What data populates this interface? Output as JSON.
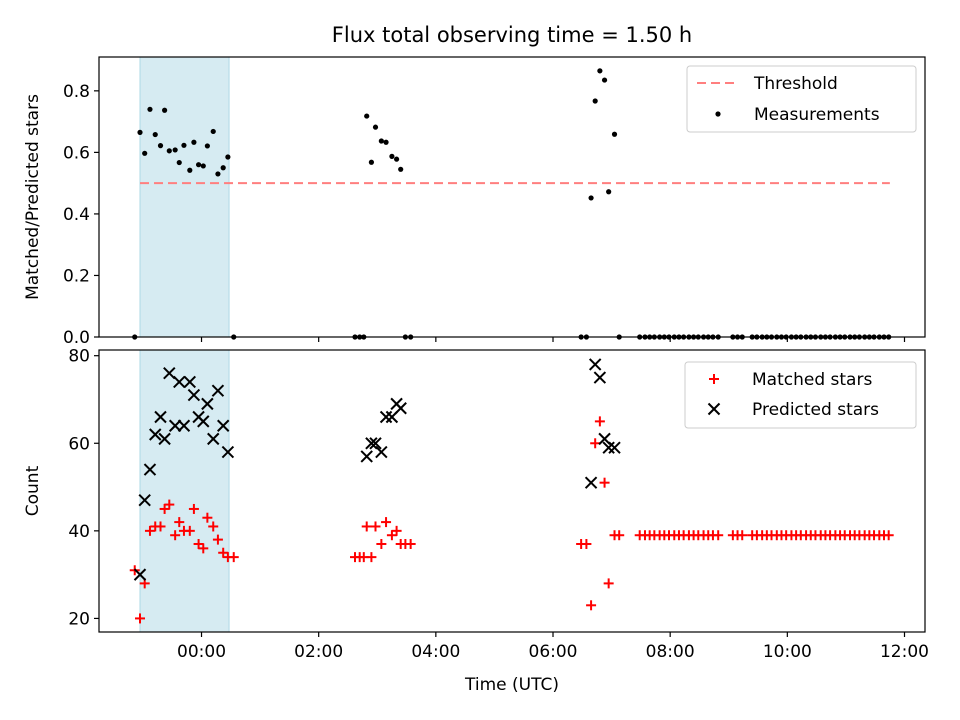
{
  "chart_data": [
    {
      "type": "scatter",
      "title": "Flux total observing time = 1.50 h",
      "xlabel": "",
      "ylabel": "Matched/Predicted stars",
      "x_unit": "hours (UTC), axis labelled HH:MM",
      "xlim": [
        -1.75,
        12.35
      ],
      "ylim": [
        0.0,
        0.91
      ],
      "yticks": [
        "0.0",
        "0.2",
        "0.4",
        "0.6",
        "0.8"
      ],
      "shaded_span": [
        -1.05,
        0.47
      ],
      "shaded_color": "#add8e6",
      "legend_position": "top-right",
      "threshold": {
        "name": "Threshold",
        "y": 0.5,
        "x_range": [
          -1.05,
          11.75
        ],
        "color": "#ff7f7f"
      },
      "series": [
        {
          "name": "Measurements",
          "color": "#000000",
          "points": [
            [
              -1.14,
              0.0
            ],
            [
              -1.05,
              0.665
            ],
            [
              -0.97,
              0.597
            ],
            [
              -0.88,
              0.74
            ],
            [
              -0.79,
              0.658
            ],
            [
              -0.7,
              0.622
            ],
            [
              -0.63,
              0.737
            ],
            [
              -0.55,
              0.605
            ],
            [
              -0.45,
              0.608
            ],
            [
              -0.38,
              0.567
            ],
            [
              -0.3,
              0.623
            ],
            [
              -0.2,
              0.542
            ],
            [
              -0.13,
              0.633
            ],
            [
              -0.05,
              0.56
            ],
            [
              0.03,
              0.556
            ],
            [
              0.1,
              0.621
            ],
            [
              0.2,
              0.668
            ],
            [
              0.28,
              0.53
            ],
            [
              0.37,
              0.55
            ],
            [
              0.45,
              0.585
            ],
            [
              0.55,
              0.0
            ],
            [
              2.62,
              0.0
            ],
            [
              2.7,
              0.0
            ],
            [
              2.77,
              0.0
            ],
            [
              2.82,
              0.718
            ],
            [
              2.9,
              0.568
            ],
            [
              2.97,
              0.682
            ],
            [
              3.07,
              0.637
            ],
            [
              3.15,
              0.633
            ],
            [
              3.25,
              0.587
            ],
            [
              3.33,
              0.578
            ],
            [
              3.4,
              0.545
            ],
            [
              3.48,
              0.0
            ],
            [
              3.57,
              0.0
            ],
            [
              6.48,
              0.0
            ],
            [
              6.57,
              0.0
            ],
            [
              6.65,
              0.452
            ],
            [
              6.72,
              0.767
            ],
            [
              6.8,
              0.865
            ],
            [
              6.88,
              0.835
            ],
            [
              6.95,
              0.472
            ],
            [
              7.05,
              0.659
            ],
            [
              7.13,
              0.0
            ],
            [
              7.48,
              0.0
            ],
            [
              7.57,
              0.0
            ],
            [
              7.65,
              0.0
            ],
            [
              7.73,
              0.0
            ],
            [
              7.82,
              0.0
            ],
            [
              7.9,
              0.0
            ],
            [
              7.98,
              0.0
            ],
            [
              8.07,
              0.0
            ],
            [
              8.15,
              0.0
            ],
            [
              8.23,
              0.0
            ],
            [
              8.32,
              0.0
            ],
            [
              8.4,
              0.0
            ],
            [
              8.48,
              0.0
            ],
            [
              8.57,
              0.0
            ],
            [
              8.65,
              0.0
            ],
            [
              8.73,
              0.0
            ],
            [
              8.82,
              0.0
            ],
            [
              9.07,
              0.0
            ],
            [
              9.15,
              0.0
            ],
            [
              9.23,
              0.0
            ],
            [
              9.4,
              0.0
            ],
            [
              9.48,
              0.0
            ],
            [
              9.57,
              0.0
            ],
            [
              9.65,
              0.0
            ],
            [
              9.73,
              0.0
            ],
            [
              9.82,
              0.0
            ],
            [
              9.9,
              0.0
            ],
            [
              9.98,
              0.0
            ],
            [
              10.07,
              0.0
            ],
            [
              10.15,
              0.0
            ],
            [
              10.23,
              0.0
            ],
            [
              10.32,
              0.0
            ],
            [
              10.4,
              0.0
            ],
            [
              10.48,
              0.0
            ],
            [
              10.57,
              0.0
            ],
            [
              10.65,
              0.0
            ],
            [
              10.73,
              0.0
            ],
            [
              10.82,
              0.0
            ],
            [
              10.9,
              0.0
            ],
            [
              10.98,
              0.0
            ],
            [
              11.07,
              0.0
            ],
            [
              11.15,
              0.0
            ],
            [
              11.23,
              0.0
            ],
            [
              11.32,
              0.0
            ],
            [
              11.4,
              0.0
            ],
            [
              11.48,
              0.0
            ],
            [
              11.57,
              0.0
            ],
            [
              11.65,
              0.0
            ],
            [
              11.73,
              0.0
            ]
          ]
        }
      ]
    },
    {
      "type": "scatter",
      "title": "",
      "xlabel": "Time (UTC)",
      "ylabel": "Count",
      "x_unit": "hours (UTC), axis labelled HH:MM",
      "xlim": [
        -1.75,
        12.35
      ],
      "ylim": [
        16.9,
        81.3
      ],
      "yticks": [
        "20",
        "40",
        "60",
        "80"
      ],
      "xticks": [
        "00:00",
        "02:00",
        "04:00",
        "06:00",
        "08:00",
        "10:00",
        "12:00"
      ],
      "xtick_values": [
        0,
        2,
        4,
        6,
        8,
        10,
        12
      ],
      "shaded_span": [
        -1.05,
        0.47
      ],
      "shaded_color": "#add8e6",
      "legend_position": "top-right",
      "series": [
        {
          "name": "Matched stars",
          "color": "#ff0000",
          "marker": "plus",
          "points": [
            [
              -1.14,
              31
            ],
            [
              -1.05,
              20
            ],
            [
              -0.97,
              28
            ],
            [
              -0.88,
              40
            ],
            [
              -0.79,
              41
            ],
            [
              -0.7,
              41
            ],
            [
              -0.63,
              45
            ],
            [
              -0.55,
              46
            ],
            [
              -0.45,
              39
            ],
            [
              -0.38,
              42
            ],
            [
              -0.3,
              40
            ],
            [
              -0.2,
              40
            ],
            [
              -0.13,
              45
            ],
            [
              -0.05,
              37
            ],
            [
              0.03,
              36
            ],
            [
              0.1,
              43
            ],
            [
              0.2,
              41
            ],
            [
              0.28,
              38
            ],
            [
              0.37,
              35
            ],
            [
              0.45,
              34
            ],
            [
              0.55,
              34
            ],
            [
              2.62,
              34
            ],
            [
              2.7,
              34
            ],
            [
              2.77,
              34
            ],
            [
              2.82,
              41
            ],
            [
              2.9,
              34
            ],
            [
              2.97,
              41
            ],
            [
              3.07,
              37
            ],
            [
              3.15,
              42
            ],
            [
              3.25,
              39
            ],
            [
              3.33,
              40
            ],
            [
              3.4,
              37
            ],
            [
              3.48,
              37
            ],
            [
              3.57,
              37
            ],
            [
              6.48,
              37
            ],
            [
              6.57,
              37
            ],
            [
              6.65,
              23
            ],
            [
              6.72,
              60
            ],
            [
              6.8,
              65
            ],
            [
              6.88,
              51
            ],
            [
              6.95,
              28
            ],
            [
              7.05,
              39
            ],
            [
              7.13,
              39
            ],
            [
              7.48,
              39
            ],
            [
              7.57,
              39
            ],
            [
              7.65,
              39
            ],
            [
              7.73,
              39
            ],
            [
              7.82,
              39
            ],
            [
              7.9,
              39
            ],
            [
              7.98,
              39
            ],
            [
              8.07,
              39
            ],
            [
              8.15,
              39
            ],
            [
              8.23,
              39
            ],
            [
              8.32,
              39
            ],
            [
              8.4,
              39
            ],
            [
              8.48,
              39
            ],
            [
              8.57,
              39
            ],
            [
              8.65,
              39
            ],
            [
              8.73,
              39
            ],
            [
              8.82,
              39
            ],
            [
              9.07,
              39
            ],
            [
              9.15,
              39
            ],
            [
              9.23,
              39
            ],
            [
              9.4,
              39
            ],
            [
              9.48,
              39
            ],
            [
              9.57,
              39
            ],
            [
              9.65,
              39
            ],
            [
              9.73,
              39
            ],
            [
              9.82,
              39
            ],
            [
              9.9,
              39
            ],
            [
              9.98,
              39
            ],
            [
              10.07,
              39
            ],
            [
              10.15,
              39
            ],
            [
              10.23,
              39
            ],
            [
              10.32,
              39
            ],
            [
              10.4,
              39
            ],
            [
              10.48,
              39
            ],
            [
              10.57,
              39
            ],
            [
              10.65,
              39
            ],
            [
              10.73,
              39
            ],
            [
              10.82,
              39
            ],
            [
              10.9,
              39
            ],
            [
              10.98,
              39
            ],
            [
              11.07,
              39
            ],
            [
              11.15,
              39
            ],
            [
              11.23,
              39
            ],
            [
              11.32,
              39
            ],
            [
              11.4,
              39
            ],
            [
              11.48,
              39
            ],
            [
              11.57,
              39
            ],
            [
              11.65,
              39
            ],
            [
              11.73,
              39
            ]
          ]
        },
        {
          "name": "Predicted stars",
          "color": "#000000",
          "marker": "x",
          "points": [
            [
              -1.05,
              30
            ],
            [
              -0.97,
              47
            ],
            [
              -0.88,
              54
            ],
            [
              -0.79,
              62
            ],
            [
              -0.7,
              66
            ],
            [
              -0.63,
              61
            ],
            [
              -0.55,
              76
            ],
            [
              -0.45,
              64
            ],
            [
              -0.38,
              74
            ],
            [
              -0.3,
              64
            ],
            [
              -0.2,
              74
            ],
            [
              -0.13,
              71
            ],
            [
              -0.05,
              66
            ],
            [
              0.03,
              65
            ],
            [
              0.1,
              69
            ],
            [
              0.2,
              61
            ],
            [
              0.28,
              72
            ],
            [
              0.37,
              64
            ],
            [
              0.45,
              58
            ],
            [
              2.82,
              57
            ],
            [
              2.9,
              60
            ],
            [
              2.97,
              60
            ],
            [
              3.07,
              58
            ],
            [
              3.15,
              66
            ],
            [
              3.25,
              66
            ],
            [
              3.33,
              69
            ],
            [
              3.4,
              68
            ],
            [
              6.65,
              51
            ],
            [
              6.72,
              78
            ],
            [
              6.8,
              75
            ],
            [
              6.88,
              61
            ],
            [
              6.95,
              59
            ],
            [
              7.05,
              59
            ]
          ]
        }
      ]
    }
  ]
}
